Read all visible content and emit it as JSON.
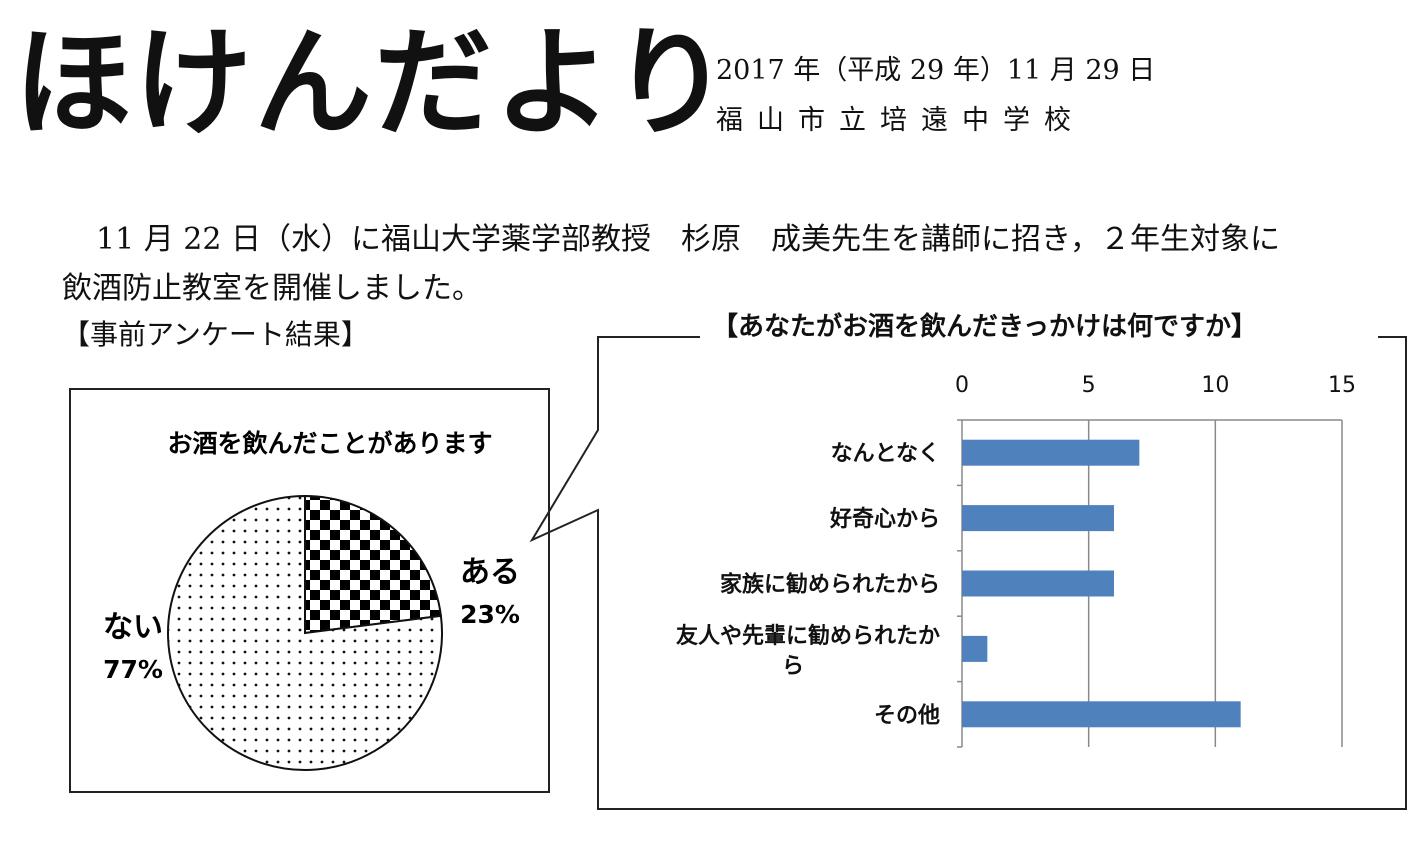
{
  "header": {
    "title": "ほけんだより",
    "date": "2017 年（平成 29 年）11 月 29 日",
    "school": "福山市立培遠中学校"
  },
  "intro": {
    "line1": "11 月 22 日（水）に福山大学薬学部教授　杉原　成美先生を講師に招き，２年生対象に",
    "line2": "飲酒防止教室を開催しました。"
  },
  "survey_heading": "【事前アンケート結果】",
  "pie_chart": {
    "title": "お酒を飲んだことがあります",
    "labels": {
      "yes": "ある",
      "yes_pct": "23%",
      "no": "ない",
      "no_pct": "77%"
    }
  },
  "bar_title": "【あなたがお酒を飲んだきっかけは何ですか】",
  "bar_labels": [
    "なんとなく",
    "好奇心から",
    "家族に勧められたから",
    "友人や先輩に勧められたか",
    "ら",
    "その他"
  ],
  "chart_data": [
    {
      "type": "pie",
      "title": "お酒を飲んだことがあります",
      "categories": [
        "ある",
        "ない"
      ],
      "values": [
        23,
        77
      ],
      "unit": "%"
    },
    {
      "type": "bar",
      "orientation": "horizontal",
      "title": "【あなたがお酒を飲んだきっかけは何ですか】",
      "categories": [
        "なんとなく",
        "好奇心から",
        "家族に勧められたから",
        "友人や先輩に勧められたから",
        "その他"
      ],
      "values": [
        7,
        6,
        6,
        1,
        11
      ],
      "xlim": [
        0,
        15
      ],
      "xticks": [
        "0",
        "5",
        "10",
        "15"
      ],
      "x_axis_position": "top",
      "grid": true,
      "color": "#4f81bd"
    }
  ]
}
